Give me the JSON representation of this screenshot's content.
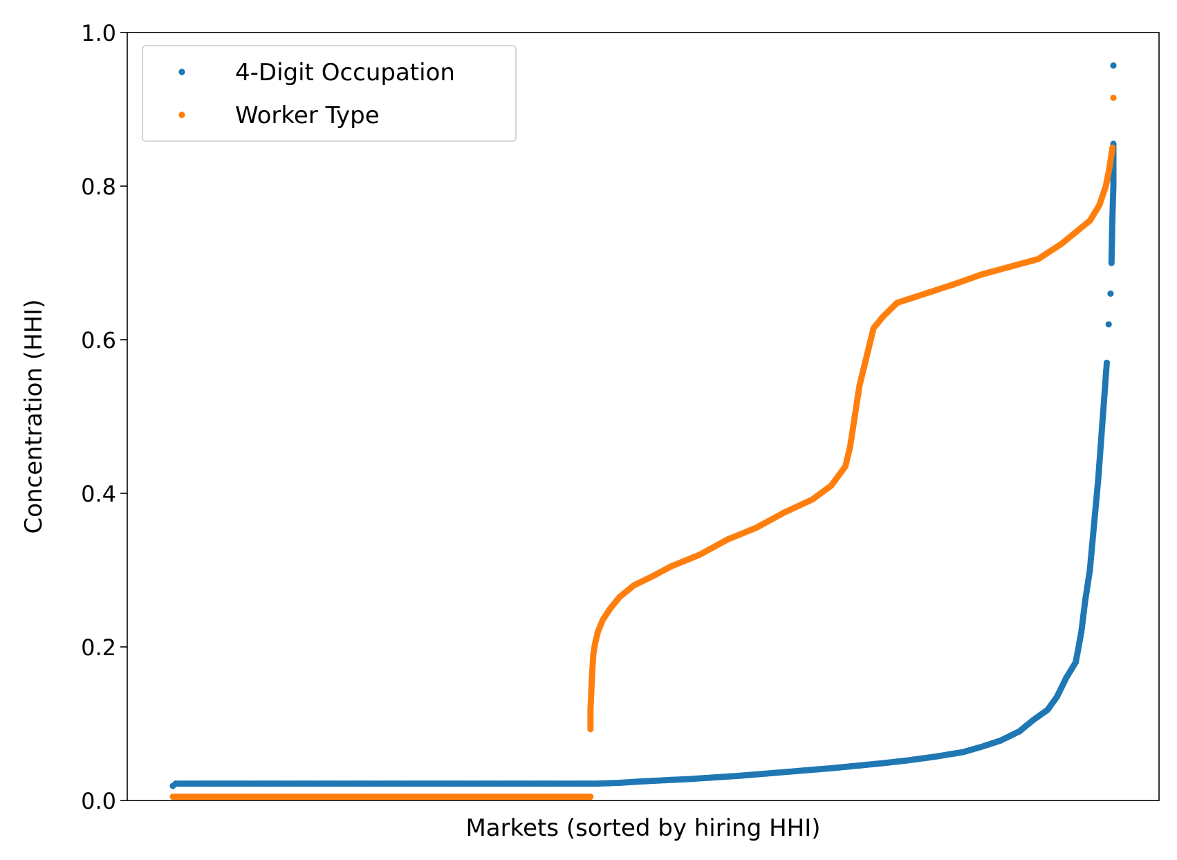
{
  "chart_data": {
    "type": "scatter",
    "title": "",
    "xlabel": "Markets (sorted by hiring HHI)",
    "ylabel": "Concentration (HHI)",
    "xlim": [
      0,
      1
    ],
    "ylim": [
      0.0,
      1.0
    ],
    "yticks": [
      "0.0",
      "0.2",
      "0.4",
      "0.6",
      "0.8",
      "1.0"
    ],
    "xticks": [],
    "grid": false,
    "legend_position": "top-left",
    "x_units": "fraction of markets (sorted by hiring HHI)",
    "series": [
      {
        "name": "4-Digit Occupation",
        "color": "#1f77b4",
        "points": [
          [
            0.0,
            0.019
          ],
          [
            0.003,
            0.022
          ],
          [
            0.02,
            0.022
          ],
          [
            0.1,
            0.022
          ],
          [
            0.2,
            0.022
          ],
          [
            0.3,
            0.022
          ],
          [
            0.4,
            0.022
          ],
          [
            0.45,
            0.022
          ],
          [
            0.475,
            0.023
          ],
          [
            0.5,
            0.025
          ],
          [
            0.55,
            0.028
          ],
          [
            0.6,
            0.032
          ],
          [
            0.65,
            0.037
          ],
          [
            0.7,
            0.042
          ],
          [
            0.75,
            0.048
          ],
          [
            0.78,
            0.052
          ],
          [
            0.81,
            0.057
          ],
          [
            0.84,
            0.063
          ],
          [
            0.86,
            0.07
          ],
          [
            0.88,
            0.078
          ],
          [
            0.9,
            0.09
          ],
          [
            0.915,
            0.105
          ],
          [
            0.93,
            0.118
          ],
          [
            0.94,
            0.135
          ],
          [
            0.95,
            0.16
          ],
          [
            0.96,
            0.18
          ],
          [
            0.966,
            0.22
          ],
          [
            0.97,
            0.26
          ],
          [
            0.975,
            0.3
          ],
          [
            0.978,
            0.34
          ],
          [
            0.981,
            0.38
          ],
          [
            0.984,
            0.42
          ],
          [
            0.987,
            0.47
          ],
          [
            0.99,
            0.52
          ],
          [
            0.993,
            0.57
          ],
          [
            0.995,
            0.62
          ],
          [
            0.997,
            0.66
          ],
          [
            0.998,
            0.7
          ],
          [
            0.9985,
            0.73
          ],
          [
            0.999,
            0.76
          ],
          [
            0.9995,
            0.78
          ],
          [
            1.0,
            0.8
          ],
          [
            1.0,
            0.82
          ],
          [
            1.0,
            0.855
          ],
          [
            1.0,
            0.957
          ]
        ]
      },
      {
        "name": "Worker Type",
        "color": "#ff7f0e",
        "points": [
          [
            0.0,
            0.005
          ],
          [
            0.05,
            0.005
          ],
          [
            0.1,
            0.005
          ],
          [
            0.15,
            0.005
          ],
          [
            0.2,
            0.005
          ],
          [
            0.25,
            0.005
          ],
          [
            0.3,
            0.005
          ],
          [
            0.35,
            0.005
          ],
          [
            0.4,
            0.005
          ],
          [
            0.444,
            0.005
          ],
          [
            0.444,
            0.093
          ],
          [
            0.444,
            0.118
          ],
          [
            0.445,
            0.145
          ],
          [
            0.446,
            0.17
          ],
          [
            0.447,
            0.19
          ],
          [
            0.449,
            0.205
          ],
          [
            0.452,
            0.22
          ],
          [
            0.457,
            0.235
          ],
          [
            0.465,
            0.25
          ],
          [
            0.475,
            0.265
          ],
          [
            0.49,
            0.28
          ],
          [
            0.51,
            0.292
          ],
          [
            0.53,
            0.305
          ],
          [
            0.56,
            0.32
          ],
          [
            0.59,
            0.34
          ],
          [
            0.62,
            0.355
          ],
          [
            0.65,
            0.375
          ],
          [
            0.68,
            0.392
          ],
          [
            0.7,
            0.41
          ],
          [
            0.715,
            0.435
          ],
          [
            0.72,
            0.46
          ],
          [
            0.725,
            0.5
          ],
          [
            0.73,
            0.54
          ],
          [
            0.738,
            0.58
          ],
          [
            0.745,
            0.615
          ],
          [
            0.755,
            0.63
          ],
          [
            0.77,
            0.648
          ],
          [
            0.8,
            0.66
          ],
          [
            0.83,
            0.672
          ],
          [
            0.86,
            0.685
          ],
          [
            0.89,
            0.695
          ],
          [
            0.92,
            0.705
          ],
          [
            0.945,
            0.725
          ],
          [
            0.96,
            0.74
          ],
          [
            0.975,
            0.755
          ],
          [
            0.985,
            0.775
          ],
          [
            0.992,
            0.8
          ],
          [
            0.996,
            0.825
          ],
          [
            0.999,
            0.85
          ],
          [
            1.0,
            0.915
          ]
        ]
      }
    ]
  }
}
